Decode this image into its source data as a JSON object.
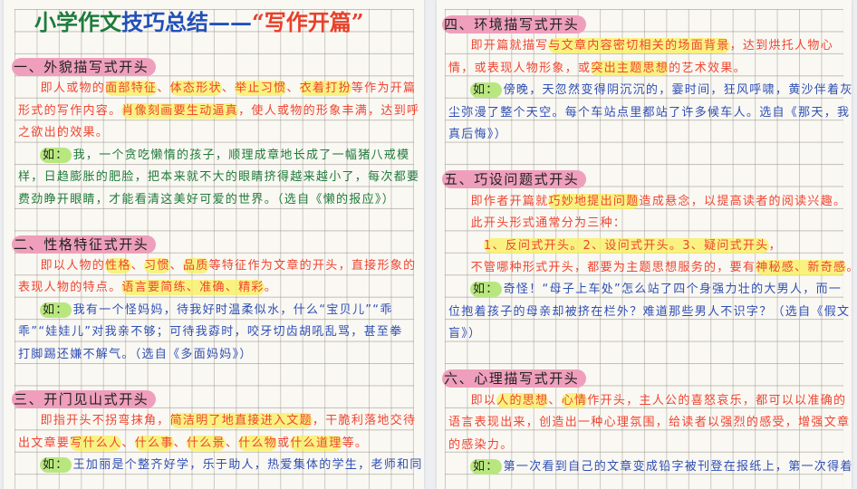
{
  "title": [
    {
      "t": "小学作文",
      "color": "#1e7b3d"
    },
    {
      "t": "技巧总结——",
      "color": "#2150b8"
    },
    {
      "t": "“写作开篇”",
      "color": "#e8402a"
    }
  ],
  "example_label": "如：",
  "colors": {
    "heading_highlight": "#ef9fbc",
    "key_highlight": "#f8f05a",
    "example_label_highlight": "#b9e77f",
    "body_red": "#ef4530",
    "example_green": "#1f7a3a",
    "example_blue": "#2e4fb4"
  },
  "pages": {
    "left": [
      {
        "heading": "一、外貌描写式开头",
        "body": [
          [
            {
              "t": "即人或物的"
            },
            {
              "t": "面部特征",
              "hl": true
            },
            {
              "t": "、"
            },
            {
              "t": "体态形状",
              "hl": true
            },
            {
              "t": "、"
            },
            {
              "t": "举止习惯",
              "hl": true
            },
            {
              "t": "、"
            },
            {
              "t": "衣着打扮",
              "hl": true
            },
            {
              "t": "等作为开篇"
            }
          ],
          [
            {
              "t": "形式的写作内容。"
            },
            {
              "t": "肖像刻画要生动逼真",
              "hl": true
            },
            {
              "t": "，使人或物的形象丰满，达到呼"
            }
          ],
          [
            {
              "t": "之欲出的效果。"
            }
          ]
        ],
        "example_color": "green",
        "example": [
          "我，一个贪吃懒惰的孩子，顺理成章地长成了一幅猪八戒模",
          "样，日趋膨胀的肥脸，把本来就不大的眼睛挤得越来越小了，每次都要",
          "费劲睁开眼睛，才能看清这美好可爱的世界。（选自《懒的报应》）"
        ]
      },
      {
        "heading": "二、性格特征式开头",
        "body": [
          [
            {
              "t": "即以人物的"
            },
            {
              "t": "性格",
              "hl": true
            },
            {
              "t": "、"
            },
            {
              "t": "习惯",
              "hl": true
            },
            {
              "t": "、"
            },
            {
              "t": "品质",
              "hl": true
            },
            {
              "t": "等特征作为文章的开头，直接形象的"
            }
          ],
          [
            {
              "t": "表现人物的特点。"
            },
            {
              "t": "语言要简练、准确、精彩",
              "hl": true
            },
            {
              "t": "。"
            }
          ]
        ],
        "example_color": "blue",
        "example": [
          "我有一个怪妈妈，待我好时温柔似水，什么“宝贝儿”“乖",
          "乖”“娃娃儿”对我亲不够；可待我孬时，咬牙切齿胡吼乱骂，甚至拳",
          "打脚踢还嫌不解气。（选自《多面妈妈》）"
        ]
      },
      {
        "heading": "三、开门见山式开头",
        "body": [
          [
            {
              "t": "即指开头不拐弯抹角，"
            },
            {
              "t": "简洁明了地直接进入文题",
              "hl": true
            },
            {
              "t": "，干脆利落地交待"
            }
          ],
          [
            {
              "t": "出文章要"
            },
            {
              "t": "写什么人",
              "hl": true
            },
            {
              "t": "、"
            },
            {
              "t": "什么事",
              "hl": true
            },
            {
              "t": "、"
            },
            {
              "t": "什么景",
              "hl": true
            },
            {
              "t": "、"
            },
            {
              "t": "什么物",
              "hl": true
            },
            {
              "t": "或"
            },
            {
              "t": "什么道理",
              "hl": true
            },
            {
              "t": "等。"
            }
          ]
        ],
        "example_color": "blue",
        "example": [
          "王加丽是个整齐好学，乐于助人，热爱集体的学生，老师和同"
        ]
      }
    ],
    "right": [
      {
        "heading": "四、环境描写式开头",
        "body": [
          [
            {
              "t": "即开篇就描写"
            },
            {
              "t": "与文章内容密切相关的场面背景",
              "hl": true
            },
            {
              "t": "，达到烘托人物心"
            }
          ],
          [
            {
              "t": "情，或表现人物形象，或"
            },
            {
              "t": "突出主题思想",
              "hl": true
            },
            {
              "t": "的艺术效果。"
            }
          ]
        ],
        "example_color": "blue",
        "example": [
          "傍晚，天忽然变得阴沉沉的，霎时间，狂风呼啸，黄沙伴着灰",
          "尘弥漫了整个天空。每个车站点里都站了许多候车人。选自《那天，我",
          "真后悔》）"
        ]
      },
      {
        "heading": "五、巧设问题式开头",
        "body": [
          [
            {
              "t": "即作者开篇就"
            },
            {
              "t": "巧妙地提出问题",
              "hl": true
            },
            {
              "t": "造成悬念，以提高读者的阅读兴趣。"
            }
          ],
          [
            {
              "t": "此开头形式通常分为三种："
            }
          ],
          [
            {
              "t": "1、反问式开头。2、设问式开头。3、疑问式开头",
              "hl": true
            },
            {
              "t": "，"
            }
          ],
          [
            {
              "t": "不管哪种形式开头，都要为主题思想服务的，要有"
            },
            {
              "t": "神秘感、新奇感",
              "hl": true
            },
            {
              "t": "。"
            }
          ]
        ],
        "example_color": "blue",
        "example": [
          "奇怪！“母子上车处”怎么站了四个身强力壮的大男人，而一",
          "位抱着孩子的母亲却被挤在栏外？难道那些男人不识字？（选自《假文",
          "盲》）"
        ]
      },
      {
        "heading": "六、心理描写式开头",
        "body": [
          [
            {
              "t": "即以"
            },
            {
              "t": "人的思想",
              "hl": true
            },
            {
              "t": "、"
            },
            {
              "t": "心情",
              "hl": true
            },
            {
              "t": "作开头，主人公的喜怒哀乐，都可以以准确的"
            }
          ],
          [
            {
              "t": "语言表现出来，创造出一种心理氛围，给读者以强烈的感受，增强文章"
            }
          ],
          [
            {
              "t": "的感染力。"
            }
          ]
        ],
        "example_color": "blue",
        "example": [
          "第一次看到自己的文章变成铅字被刊登在报纸上，第一次得着"
        ]
      }
    ]
  }
}
